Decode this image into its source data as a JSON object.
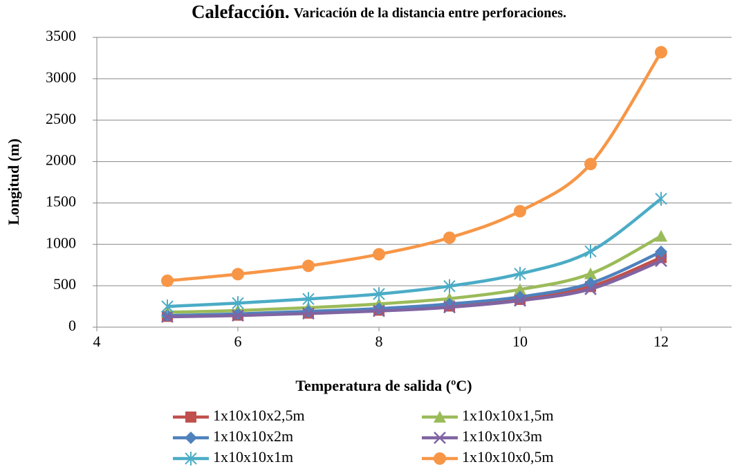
{
  "chart_data": {
    "type": "line",
    "title": "Calefacción.",
    "subtitle": "Varicación de la distancia entre perforaciones.",
    "x_label": "Temperatura de salida (ºC)",
    "y_label": "Longitud (m)",
    "x": [
      5,
      6,
      7,
      8,
      9,
      10,
      11,
      12
    ],
    "xlim": [
      4,
      13
    ],
    "xticks": [
      4,
      6,
      8,
      10,
      12
    ],
    "ylim": [
      0,
      3500
    ],
    "yticks": [
      0,
      500,
      1000,
      1500,
      2000,
      2500,
      3000,
      3500
    ],
    "grid": true,
    "smooth": true,
    "legend": "bottom",
    "series": [
      {
        "name": "1x10x10x2,5m",
        "color": "#c0504d",
        "marker": "square",
        "values": [
          130,
          145,
          170,
          205,
          255,
          335,
          490,
          840
        ]
      },
      {
        "name": "1x10x10x1,5m",
        "color": "#9bbb59",
        "marker": "triangle",
        "values": [
          180,
          200,
          235,
          280,
          345,
          455,
          645,
          1100
        ]
      },
      {
        "name": "1x10x10x2m",
        "color": "#4f81bd",
        "marker": "diamond",
        "values": [
          140,
          160,
          190,
          225,
          280,
          365,
          530,
          910
        ]
      },
      {
        "name": "1x10x10x3m",
        "color": "#8064a2",
        "marker": "x",
        "values": [
          125,
          140,
          165,
          195,
          240,
          320,
          460,
          800
        ]
      },
      {
        "name": "1x10x10x1m",
        "color": "#4bacc6",
        "marker": "star",
        "values": [
          250,
          290,
          340,
          400,
          495,
          645,
          915,
          1550
        ]
      },
      {
        "name": "1x10x10x0,5m",
        "color": "#f79646",
        "marker": "circle",
        "values": [
          560,
          640,
          740,
          880,
          1080,
          1400,
          1970,
          3320
        ]
      }
    ]
  }
}
